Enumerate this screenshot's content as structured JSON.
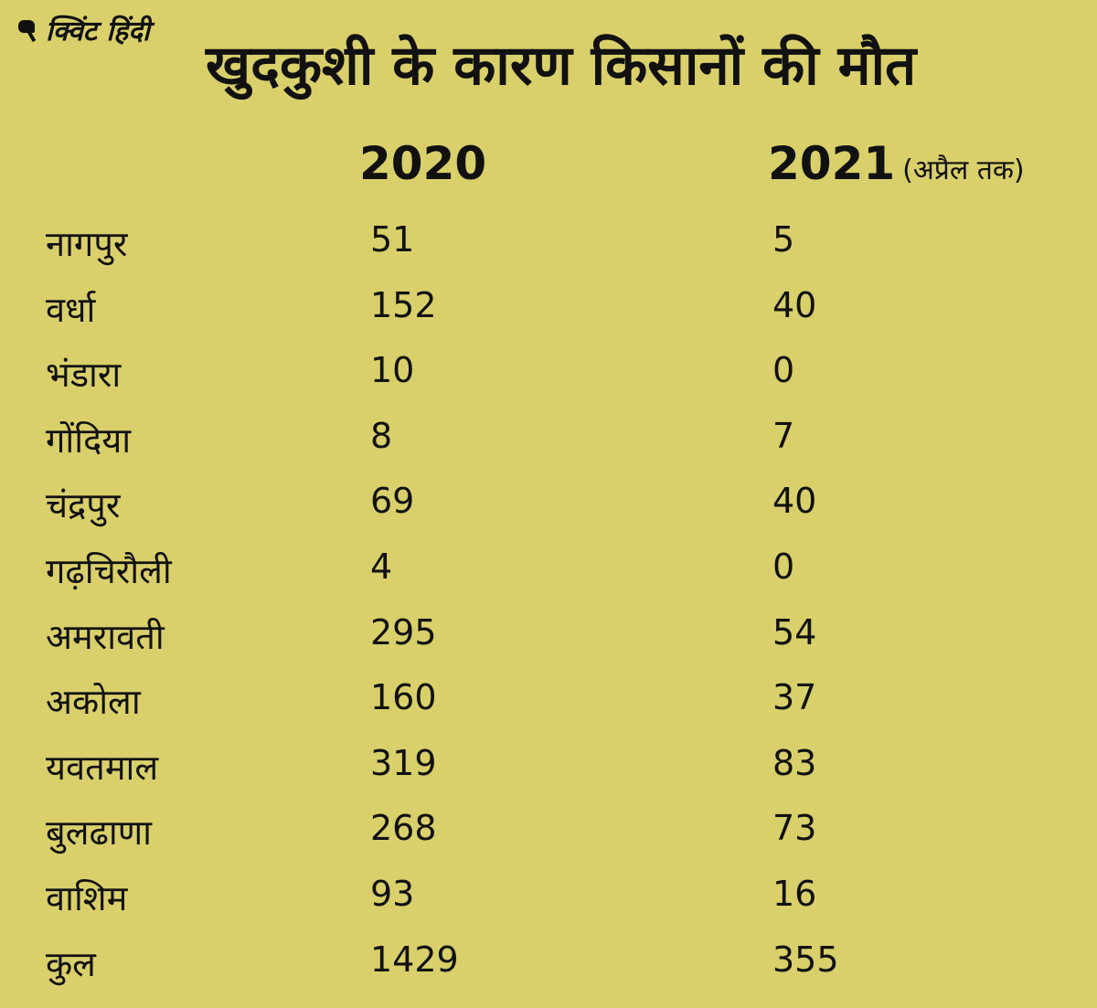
{
  "logo": "क्विंट हिंदी",
  "chart_data": {
    "type": "table",
    "title": "खुदकुशी के कारण किसानों की मौत",
    "columns": [
      "",
      "2020",
      "2021"
    ],
    "column_note": "(अप्रैल तक)",
    "rows": [
      [
        "नागपुर",
        "51",
        "5"
      ],
      [
        "वर्धा",
        "152",
        "40"
      ],
      [
        "भंडारा",
        "10",
        "0"
      ],
      [
        "गोंदिया",
        "8",
        "7"
      ],
      [
        "चंद्रपुर",
        "69",
        "40"
      ],
      [
        "गढ़चिरौली",
        "4",
        "0"
      ],
      [
        "अमरावती",
        "295",
        "54"
      ],
      [
        "अकोला",
        "160",
        "37"
      ],
      [
        "यवतमाल",
        "319",
        "83"
      ],
      [
        "बुलढाणा",
        "268",
        "73"
      ],
      [
        "वाशिम",
        "93",
        "16"
      ],
      [
        "कुल",
        "1429",
        "355"
      ]
    ]
  },
  "colors": {
    "background": "#d9d06c",
    "text": "#111111"
  }
}
